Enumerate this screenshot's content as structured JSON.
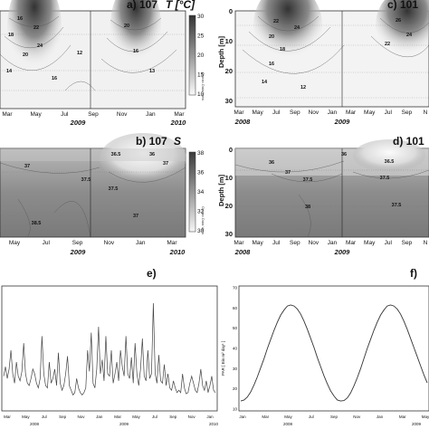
{
  "panels": {
    "a": {
      "label": "a) 107",
      "var": "T [°C]",
      "months": [
        "Mar",
        "May",
        "Jul",
        "Sep",
        "Nov",
        "Jan",
        "Mar"
      ],
      "years": [
        "2009",
        "2010"
      ],
      "colorbar_ticks": [
        "30",
        "25",
        "20",
        "15",
        "10"
      ],
      "contour_labels": [
        "16",
        "18",
        "22",
        "24",
        "20",
        "14",
        "16",
        "12",
        "20",
        "16",
        "13"
      ],
      "watermark": "Ocean Data View"
    },
    "b": {
      "label": "b) 107",
      "var": "S",
      "months": [
        "May",
        "Jul",
        "Sep",
        "Nov",
        "Jan",
        "Mar"
      ],
      "years": [
        "2009",
        "2010"
      ],
      "colorbar_ticks": [
        "38",
        "36",
        "34",
        "32",
        "30"
      ],
      "contour_labels": [
        "37",
        "37.5",
        "36.5",
        "36",
        "37",
        "38.5",
        "37.5",
        "37"
      ],
      "watermark": "Ocean Data View"
    },
    "c": {
      "label": "c) 101",
      "months": [
        "Mar",
        "May",
        "Jul",
        "Sep",
        "Nov",
        "Jan",
        "Mar",
        "May",
        "Jul",
        "Sep",
        "N"
      ],
      "years": [
        "2008",
        "2009"
      ],
      "ylabel": "Depth [m]",
      "yticks": [
        "0",
        "10",
        "20",
        "30"
      ],
      "contour_labels": [
        "22",
        "24",
        "20",
        "18",
        "16",
        "14",
        "12",
        "26",
        "24",
        "22"
      ]
    },
    "d": {
      "label": "d) 101",
      "months": [
        "Mar",
        "May",
        "Jul",
        "Sep",
        "Nov",
        "Jan",
        "Mar",
        "May",
        "Jul",
        "Sep",
        "N"
      ],
      "years": [
        "2008",
        "2009"
      ],
      "ylabel": "Depth [m]",
      "yticks": [
        "0",
        "10",
        "20",
        "30"
      ],
      "contour_labels": [
        "36",
        "37",
        "37.5",
        "36.5",
        "37.5",
        "38",
        "37.5",
        "36"
      ]
    },
    "e": {
      "label": "e)",
      "months": [
        "Mar",
        "May",
        "Jul",
        "Sep",
        "Nov",
        "Jan",
        "Mar",
        "May",
        "Jul",
        "Sep",
        "Nov",
        "Jan"
      ],
      "years": [
        "2008",
        "2009",
        "2010"
      ]
    },
    "f": {
      "label": "f)",
      "ylabel": "PAR [ Ein m² day¹ ]",
      "yticks": [
        "70",
        "60",
        "50",
        "40",
        "30",
        "20",
        "10"
      ],
      "months": [
        "Jan",
        "Mar",
        "May",
        "Jul",
        "Sep",
        "Nov",
        "Jan",
        "Mar",
        "May"
      ],
      "years": [
        "2008",
        "2009"
      ]
    }
  },
  "chart_data": [
    {
      "type": "heatmap",
      "id": "a",
      "title": "107 T [°C]",
      "ylim": [
        0,
        32
      ],
      "colorbar_range": [
        10,
        30
      ]
    },
    {
      "type": "heatmap",
      "id": "b",
      "title": "107 S",
      "ylim": [
        0,
        32
      ],
      "colorbar_range": [
        30,
        38
      ]
    },
    {
      "type": "heatmap",
      "id": "c",
      "title": "101",
      "ylabel": "Depth [m]",
      "ylim": [
        0,
        32
      ]
    },
    {
      "type": "heatmap",
      "id": "d",
      "title": "101",
      "ylabel": "Depth [m]",
      "ylim": [
        0,
        32
      ]
    },
    {
      "type": "line",
      "id": "e",
      "x_range": [
        "2008-03",
        "2010-01"
      ],
      "values": [
        0.28,
        0.36,
        0.26,
        0.34,
        0.5,
        0.3,
        0.22,
        0.4,
        0.28,
        0.24,
        0.32,
        0.56,
        0.3,
        0.22,
        0.2,
        0.26,
        0.34,
        0.3,
        0.22,
        0.18,
        0.26,
        0.62,
        0.3,
        0.2,
        0.18,
        0.4,
        0.22,
        0.26,
        0.34,
        0.2,
        0.48,
        0.22,
        0.16,
        0.2,
        0.3,
        0.45,
        0.2,
        0.16,
        0.12,
        0.14,
        0.26,
        0.18,
        0.14,
        0.12,
        0.14,
        0.18,
        0.5,
        0.32,
        0.65,
        0.22,
        0.18,
        0.34,
        0.7,
        0.3,
        0.42,
        0.24,
        0.62,
        0.3,
        0.28,
        0.5,
        0.22,
        0.3,
        0.4,
        0.24,
        0.5,
        0.36,
        0.28,
        0.62,
        0.3,
        0.26,
        0.44,
        0.22,
        0.56,
        0.3,
        0.2,
        0.34,
        0.6,
        0.28,
        0.24,
        0.5,
        0.26,
        0.3,
        0.9,
        0.3,
        0.22,
        0.46,
        0.24,
        0.22,
        0.38,
        0.2,
        0.3,
        0.18,
        0.16,
        0.24,
        0.18,
        0.14,
        0.16,
        0.14,
        0.3,
        0.18,
        0.13,
        0.14,
        0.22,
        0.28,
        0.22,
        0.16,
        0.14,
        0.22,
        0.34,
        0.2,
        0.16,
        0.24,
        0.14,
        0.2,
        0.28,
        0.16,
        0.14
      ]
    },
    {
      "type": "line",
      "id": "f",
      "ylabel": "PAR [ Ein m² day¹ ]",
      "ylim": [
        10,
        70
      ],
      "x": [
        0,
        1,
        2,
        3,
        4,
        5,
        6,
        7,
        8,
        9,
        10,
        11,
        12,
        13,
        14,
        15,
        16,
        17,
        18,
        19,
        20,
        21,
        22,
        23,
        24,
        25,
        26,
        27,
        28,
        29,
        30,
        31,
        32,
        33,
        34,
        35,
        36,
        37,
        38,
        39,
        40,
        41,
        42,
        43,
        44,
        45,
        46,
        47,
        48,
        49,
        50,
        51,
        52,
        53,
        54,
        55,
        56
      ],
      "values": [
        14,
        14.5,
        16,
        18.5,
        22,
        26,
        30.5,
        35,
        40,
        44.5,
        49,
        53,
        56.5,
        59,
        61,
        61.5,
        61,
        59.5,
        57,
        53.5,
        49.5,
        45,
        40.5,
        35.5,
        31,
        26.5,
        22.5,
        19,
        16.5,
        14.5,
        14,
        14.2,
        15.5,
        18,
        21.5,
        25.5,
        30,
        35,
        40,
        44.5,
        49,
        53,
        56.5,
        59,
        61,
        61.5,
        61,
        59.5,
        57,
        53.5,
        49.5,
        45,
        40.5,
        36,
        31.5,
        27,
        23
      ]
    }
  ]
}
